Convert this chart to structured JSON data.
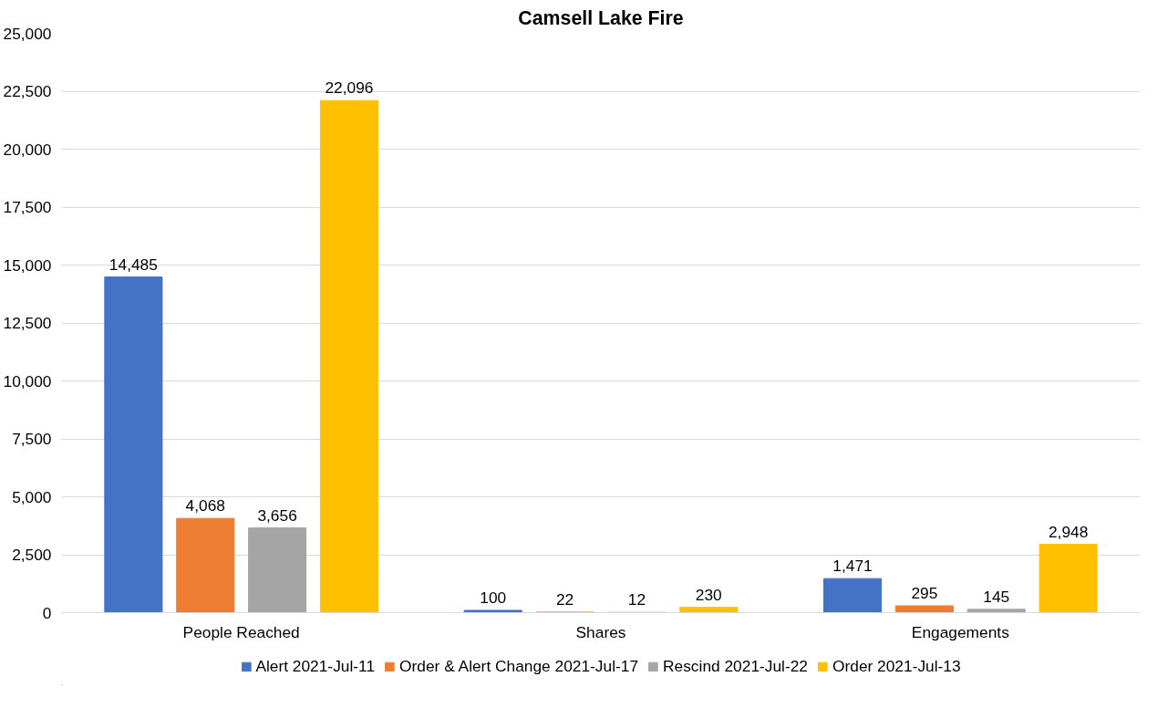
{
  "chart_data": {
    "type": "bar",
    "title": "Camsell Lake Fire",
    "categories": [
      "People Reached",
      "Shares",
      "Engagements"
    ],
    "series": [
      {
        "name": "Alert 2021-Jul-11",
        "color": "#4472c4",
        "values": [
          14485,
          100,
          1471
        ],
        "value_labels": [
          "14,485",
          "100",
          "1,471"
        ]
      },
      {
        "name": "Order & Alert Change 2021-Jul-17",
        "color": "#ed7d31",
        "values": [
          4068,
          22,
          295
        ],
        "value_labels": [
          "4,068",
          "22",
          "295"
        ]
      },
      {
        "name": "Rescind 2021-Jul-22",
        "color": "#a5a5a5",
        "values": [
          3656,
          12,
          145
        ],
        "value_labels": [
          "3,656",
          "12",
          "145"
        ]
      },
      {
        "name": "Order 2021-Jul-13",
        "color": "#ffc000",
        "values": [
          22096,
          230,
          2948
        ],
        "value_labels": [
          "22,096",
          "230",
          "2,948"
        ]
      }
    ],
    "ylim": [
      0,
      25000
    ],
    "yticks": [
      0,
      {
        "value": 2500,
        "label": "2,500"
      },
      {
        "value": 5000,
        "label": "5,000"
      },
      {
        "value": 7500,
        "label": "7,500"
      },
      {
        "value": 10000,
        "label": "10,000"
      },
      {
        "value": 12500,
        "label": "12,500"
      },
      {
        "value": 15000,
        "label": "15,000"
      },
      {
        "value": 17500,
        "label": "17,500"
      },
      {
        "value": 20000,
        "label": "20,000"
      },
      {
        "value": 22500,
        "label": "22,500"
      },
      {
        "value": 25000,
        "label": "25,000"
      }
    ],
    "grid": "y",
    "legend": "bottom"
  }
}
